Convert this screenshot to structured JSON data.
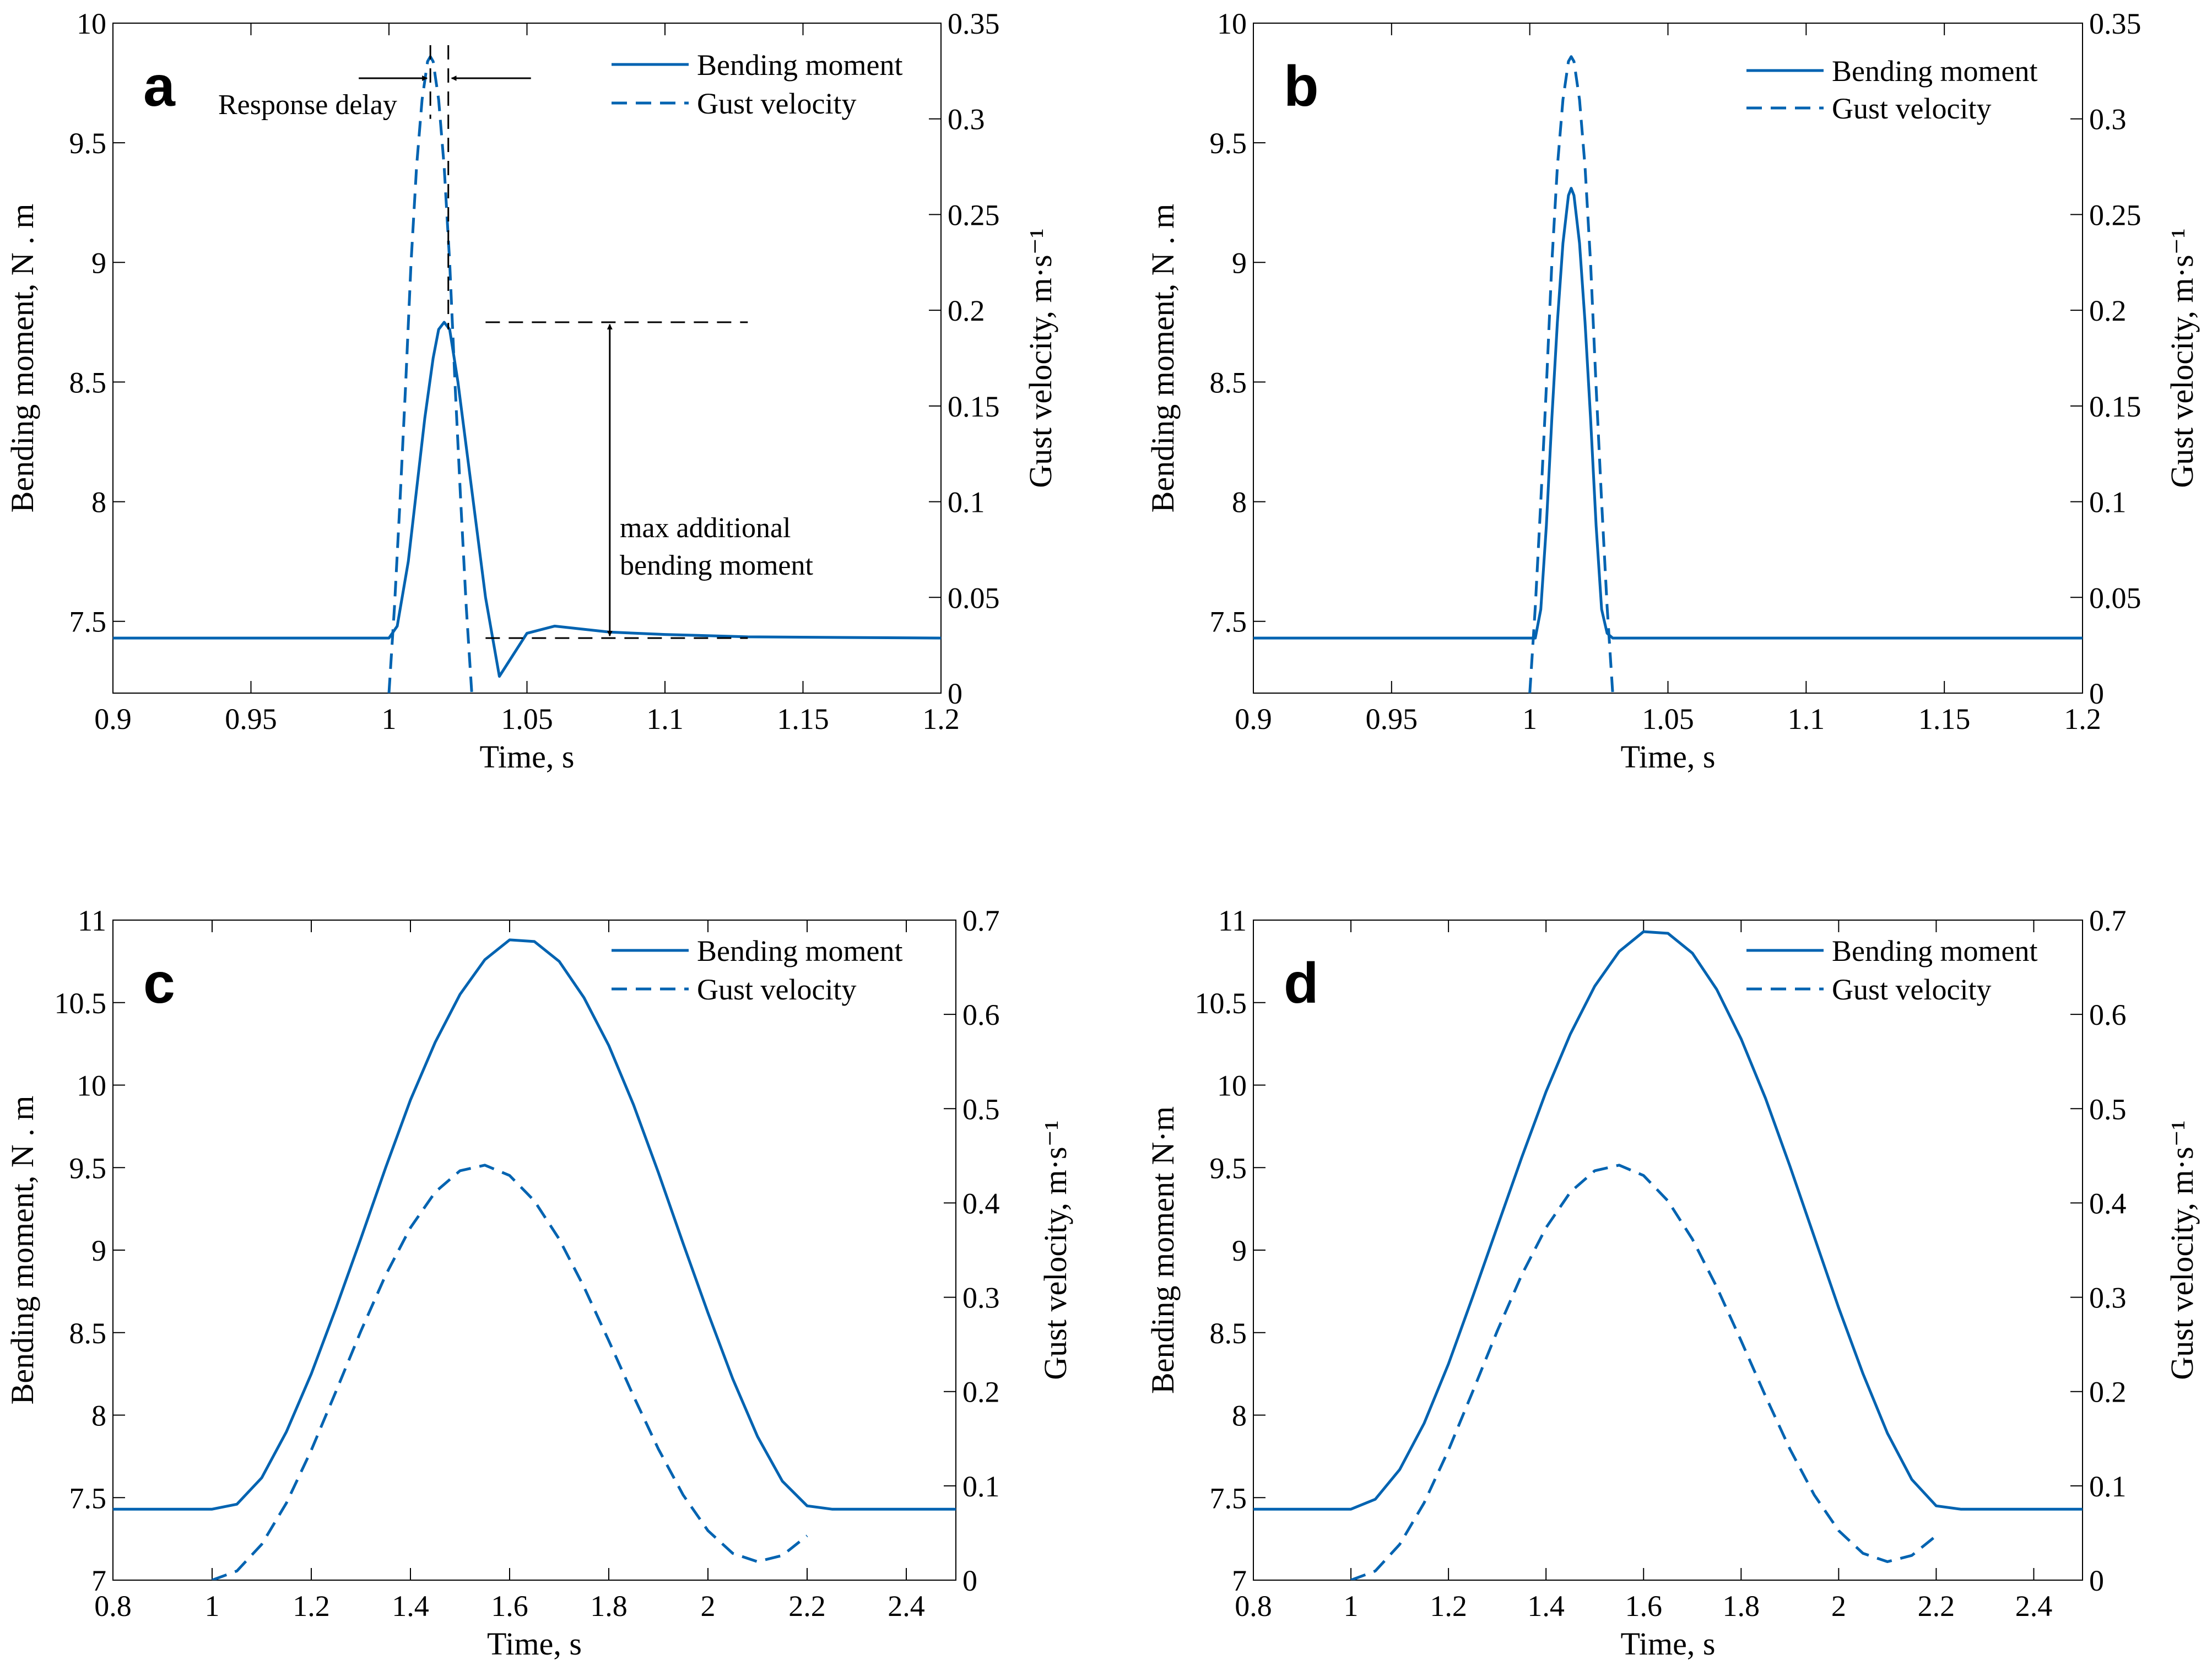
{
  "series_color": "#0063b1",
  "chart_data": [
    {
      "panel": "a",
      "type": "line",
      "xlabel": "Time, s",
      "ylabel": "Bending  moment,  N . m",
      "y2label": "Gust velocity, m·s⁻¹",
      "xlim": [
        0.9,
        1.2
      ],
      "ylim": [
        7.2,
        10
      ],
      "y2lim": [
        0,
        0.35
      ],
      "xticks": [
        0.9,
        0.95,
        1,
        1.05,
        1.1,
        1.15,
        1.2
      ],
      "xtick_labels": [
        "0.9",
        "0.95",
        "1",
        "1.05",
        "1.1",
        "1.15",
        "1.2"
      ],
      "yticks": [
        7.5,
        8,
        8.5,
        9,
        9.5,
        10
      ],
      "ytick_labels": [
        "7.5",
        "8",
        "8.5",
        "9",
        "9.5",
        "10"
      ],
      "y2ticks": [
        0,
        0.05,
        0.1,
        0.15,
        0.2,
        0.25,
        0.3,
        0.35
      ],
      "y2tick_labels": [
        "0",
        "0.05",
        "0.1",
        "0.15",
        "0.2",
        "0.25",
        "0.3",
        "0.35"
      ],
      "legend": {
        "position": "top-right",
        "entries": [
          "Bending moment",
          "Gust velocity"
        ]
      },
      "series": [
        {
          "name": "Bending moment",
          "axis": "left",
          "style": "solid",
          "x": [
            0.9,
            1.0,
            1.003,
            1.007,
            1.01,
            1.013,
            1.016,
            1.018,
            1.02,
            1.022,
            1.025,
            1.03,
            1.035,
            1.04,
            1.05,
            1.06,
            1.08,
            1.1,
            1.13,
            1.2
          ],
          "y": [
            7.43,
            7.43,
            7.48,
            7.75,
            8.05,
            8.35,
            8.6,
            8.72,
            8.75,
            8.72,
            8.5,
            8.05,
            7.6,
            7.27,
            7.45,
            7.48,
            7.455,
            7.445,
            7.435,
            7.43
          ]
        },
        {
          "name": "Gust velocity",
          "axis": "right",
          "style": "dashed",
          "x": [
            1.0,
            1.002,
            1.004,
            1.006,
            1.008,
            1.01,
            1.012,
            1.014,
            1.015,
            1.016,
            1.018,
            1.02,
            1.022,
            1.024,
            1.026,
            1.028,
            1.03
          ],
          "y": [
            0.0,
            0.045,
            0.1,
            0.16,
            0.225,
            0.275,
            0.31,
            0.33,
            0.3325,
            0.33,
            0.31,
            0.275,
            0.225,
            0.16,
            0.1,
            0.045,
            0.0
          ]
        }
      ],
      "annotations": [
        {
          "text": "Response delay"
        },
        {
          "text": "max additional"
        },
        {
          "text": "bending moment"
        }
      ]
    },
    {
      "panel": "b",
      "type": "line",
      "xlabel": "Time, s",
      "ylabel": "Bending  moment,  N . m",
      "y2label": "Gust velocity, m·s⁻¹",
      "xlim": [
        0.9,
        1.2
      ],
      "ylim": [
        7.2,
        10
      ],
      "y2lim": [
        0,
        0.35
      ],
      "xticks": [
        0.9,
        0.95,
        1,
        1.05,
        1.1,
        1.15,
        1.2
      ],
      "xtick_labels": [
        "0.9",
        "0.95",
        "1",
        "1.05",
        "1.1",
        "1.15",
        "1.2"
      ],
      "yticks": [
        7.5,
        8,
        8.5,
        9,
        9.5,
        10
      ],
      "ytick_labels": [
        "7.5",
        "8",
        "8.5",
        "9",
        "9.5",
        "10"
      ],
      "y2ticks": [
        0,
        0.05,
        0.1,
        0.15,
        0.2,
        0.25,
        0.3,
        0.35
      ],
      "y2tick_labels": [
        "0",
        "0.05",
        "0.1",
        "0.15",
        "0.2",
        "0.25",
        "0.3",
        "0.35"
      ],
      "legend": {
        "position": "top-right",
        "entries": [
          "Bending moment",
          "Gust velocity"
        ]
      },
      "series": [
        {
          "name": "Bending moment",
          "axis": "left",
          "style": "solid",
          "x": [
            0.9,
            1.002,
            1.004,
            1.006,
            1.008,
            1.01,
            1.012,
            1.014,
            1.015,
            1.016,
            1.018,
            1.02,
            1.022,
            1.024,
            1.026,
            1.028,
            1.03,
            1.2
          ],
          "y": [
            7.43,
            7.43,
            7.55,
            7.9,
            8.35,
            8.75,
            9.08,
            9.28,
            9.31,
            9.28,
            9.08,
            8.75,
            8.35,
            7.9,
            7.55,
            7.45,
            7.43,
            7.43
          ]
        },
        {
          "name": "Gust velocity",
          "axis": "right",
          "style": "dashed",
          "x": [
            1.0,
            1.002,
            1.004,
            1.006,
            1.008,
            1.01,
            1.012,
            1.014,
            1.015,
            1.016,
            1.018,
            1.02,
            1.022,
            1.024,
            1.026,
            1.028,
            1.03
          ],
          "y": [
            0.0,
            0.045,
            0.1,
            0.16,
            0.225,
            0.275,
            0.31,
            0.33,
            0.3325,
            0.33,
            0.31,
            0.275,
            0.225,
            0.16,
            0.1,
            0.045,
            0.0
          ]
        }
      ]
    },
    {
      "panel": "c",
      "type": "line",
      "xlabel": "Time, s",
      "ylabel": "Bending  moment,  N . m",
      "y2label": "Gust velocity, m·s⁻¹",
      "xlim": [
        0.8,
        2.5
      ],
      "ylim": [
        7,
        11
      ],
      "y2lim": [
        0,
        0.7
      ],
      "xticks": [
        0.8,
        1,
        1.2,
        1.4,
        1.6,
        1.8,
        2,
        2.2,
        2.4
      ],
      "xtick_labels": [
        "0.8",
        "1",
        "1.2",
        "1.4",
        "1.6",
        "1.8",
        "2",
        "2.2",
        "2.4"
      ],
      "yticks": [
        7,
        7.5,
        8,
        8.5,
        9,
        9.5,
        10,
        10.5,
        11
      ],
      "ytick_labels": [
        "7",
        "7.5",
        "8",
        "8.5",
        "9",
        "9.5",
        "10",
        "10.5",
        "11"
      ],
      "y2ticks": [
        0,
        0.1,
        0.2,
        0.3,
        0.4,
        0.5,
        0.6,
        0.7
      ],
      "y2tick_labels": [
        "0",
        "0.1",
        "0.2",
        "0.3",
        "0.4",
        "0.5",
        "0.6",
        "0.7"
      ],
      "legend": {
        "position": "top-right",
        "entries": [
          "Bending moment",
          "Gust velocity"
        ]
      },
      "series": [
        {
          "name": "Bending moment",
          "axis": "left",
          "style": "solid",
          "x": [
            0.8,
            1.0,
            1.05,
            1.1,
            1.15,
            1.2,
            1.25,
            1.3,
            1.35,
            1.4,
            1.45,
            1.5,
            1.55,
            1.6,
            1.65,
            1.7,
            1.75,
            1.8,
            1.85,
            1.9,
            1.95,
            2.0,
            2.05,
            2.1,
            2.15,
            2.2,
            2.25,
            2.5
          ],
          "y": [
            7.43,
            7.43,
            7.46,
            7.62,
            7.9,
            8.25,
            8.65,
            9.07,
            9.5,
            9.91,
            10.26,
            10.55,
            10.76,
            10.88,
            10.87,
            10.75,
            10.53,
            10.24,
            9.88,
            9.47,
            9.04,
            8.62,
            8.22,
            7.87,
            7.6,
            7.45,
            7.43,
            7.43
          ]
        },
        {
          "name": "Gust velocity",
          "axis": "right",
          "style": "dashed",
          "x": [
            1.0,
            1.05,
            1.1,
            1.15,
            1.2,
            1.25,
            1.3,
            1.35,
            1.4,
            1.45,
            1.5,
            1.55,
            1.6,
            1.65,
            1.7,
            1.75,
            1.8,
            1.85,
            1.9,
            1.95,
            2.0,
            2.05,
            2.1,
            2.15,
            2.2
          ],
          "y": [
            0.0,
            0.0097,
            0.0379,
            0.0819,
            0.1378,
            0.2004,
            0.2641,
            0.3235,
            0.3738,
            0.4116,
            0.4342,
            0.4401,
            0.4291,
            0.4022,
            0.3617,
            0.3109,
            0.2539,
            0.1951,
            0.1391,
            0.0903,
            0.0525,
            0.0284,
            0.0196,
            0.0262,
            0.0471
          ]
        }
      ]
    },
    {
      "panel": "d",
      "type": "line",
      "xlabel": "Time, s",
      "ylabel": "Bending  moment  N·m",
      "y2label": "Gust velocity, m·s⁻¹",
      "xlim": [
        0.8,
        2.5
      ],
      "ylim": [
        7,
        11
      ],
      "y2lim": [
        0,
        0.7
      ],
      "xticks": [
        0.8,
        1,
        1.2,
        1.4,
        1.6,
        1.8,
        2,
        2.2,
        2.4
      ],
      "xtick_labels": [
        "0.8",
        "1",
        "1.2",
        "1.4",
        "1.6",
        "1.8",
        "2",
        "2.2",
        "2.4"
      ],
      "yticks": [
        7,
        7.5,
        8,
        8.5,
        9,
        9.5,
        10,
        10.5,
        11
      ],
      "ytick_labels": [
        "7",
        "7.5",
        "8",
        "8.5",
        "9",
        "9.5",
        "10",
        "10.5",
        "11"
      ],
      "y2ticks": [
        0,
        0.1,
        0.2,
        0.3,
        0.4,
        0.5,
        0.6,
        0.7
      ],
      "y2tick_labels": [
        "0",
        "0.1",
        "0.2",
        "0.3",
        "0.4",
        "0.5",
        "0.6",
        "0.7"
      ],
      "legend": {
        "position": "top-right",
        "entries": [
          "Bending moment",
          "Gust velocity"
        ]
      },
      "series": [
        {
          "name": "Bending moment",
          "axis": "left",
          "style": "solid",
          "x": [
            0.8,
            1.0,
            1.05,
            1.1,
            1.15,
            1.2,
            1.25,
            1.3,
            1.35,
            1.4,
            1.45,
            1.5,
            1.55,
            1.6,
            1.65,
            1.7,
            1.75,
            1.8,
            1.85,
            1.9,
            1.95,
            2.0,
            2.05,
            2.1,
            2.15,
            2.2,
            2.25,
            2.5
          ],
          "y": [
            7.43,
            7.43,
            7.49,
            7.67,
            7.95,
            8.31,
            8.72,
            9.14,
            9.56,
            9.96,
            10.31,
            10.6,
            10.81,
            10.93,
            10.92,
            10.8,
            10.58,
            10.28,
            9.92,
            9.51,
            9.08,
            8.65,
            8.25,
            7.89,
            7.61,
            7.45,
            7.43,
            7.43
          ]
        },
        {
          "name": "Gust velocity",
          "axis": "right",
          "style": "dashed",
          "x": [
            1.0,
            1.05,
            1.1,
            1.15,
            1.2,
            1.25,
            1.3,
            1.35,
            1.4,
            1.45,
            1.5,
            1.55,
            1.6,
            1.65,
            1.7,
            1.75,
            1.8,
            1.85,
            1.9,
            1.95,
            2.0,
            2.05,
            2.1,
            2.15,
            2.2
          ],
          "y": [
            0.0,
            0.0097,
            0.0379,
            0.0819,
            0.1378,
            0.2004,
            0.2641,
            0.3235,
            0.3738,
            0.4116,
            0.4342,
            0.4401,
            0.4291,
            0.4022,
            0.3617,
            0.3109,
            0.2539,
            0.1951,
            0.1391,
            0.0903,
            0.0525,
            0.0284,
            0.0196,
            0.0262,
            0.0471
          ]
        }
      ]
    }
  ]
}
